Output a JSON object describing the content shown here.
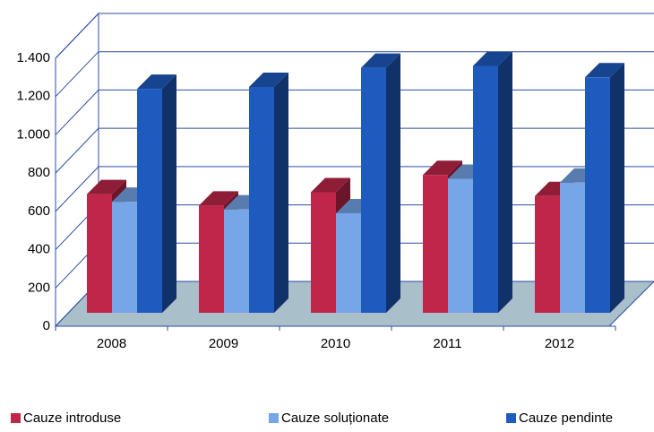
{
  "chart_data": {
    "type": "bar3d",
    "categories": [
      "2008",
      "2009",
      "2010",
      "2011",
      "2012"
    ],
    "series": [
      {
        "name": "Cauze introduse",
        "color": "#c0264a",
        "values": [
          620,
          560,
          630,
          720,
          610
        ]
      },
      {
        "name": "Cauze soluționate",
        "color": "#76a5e8",
        "values": [
          580,
          540,
          520,
          700,
          680
        ]
      },
      {
        "name": "Cauze pendinte",
        "color": "#1f5bbf",
        "values": [
          1170,
          1180,
          1280,
          1290,
          1230
        ]
      }
    ],
    "ylim": [
      0,
      1400
    ],
    "yticks": [
      0,
      200,
      400,
      600,
      800,
      {
        "value": 1000,
        "label": "1.000"
      },
      {
        "value": 1200,
        "label": "1.200"
      },
      {
        "value": 1400,
        "label": "1.400"
      }
    ],
    "grid": true,
    "legend": "bottom"
  }
}
